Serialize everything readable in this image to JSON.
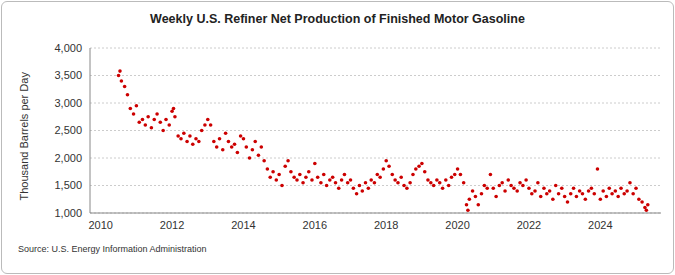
{
  "chart_data": {
    "type": "scatter",
    "title": "Weekly U.S. Refiner Net Production of Finished Motor Gasoline",
    "y_label": "Thousand Barrels per Day",
    "source": "Source: U.S. Energy Information Administration",
    "color": "#cc0000",
    "marker": "circle",
    "grid": true,
    "xlim": [
      2009.7,
      2025.7
    ],
    "xticks": [
      2010,
      2012,
      2014,
      2016,
      2018,
      2020,
      2022,
      2024
    ],
    "ylim": [
      1000,
      4000
    ],
    "yticks": [
      {
        "value": 1000,
        "label": "1,000"
      },
      {
        "value": 1500,
        "label": "1,500"
      },
      {
        "value": 2000,
        "label": "2,000"
      },
      {
        "value": 2500,
        "label": "2,500"
      },
      {
        "value": 3000,
        "label": "3,000"
      },
      {
        "value": 3500,
        "label": "3,500"
      },
      {
        "value": 4000,
        "label": "4,000"
      }
    ],
    "x": [
      2010.5,
      2010.54,
      2010.58,
      2010.67,
      2010.75,
      2010.83,
      2010.92,
      2011.0,
      2011.08,
      2011.17,
      2011.25,
      2011.33,
      2011.42,
      2011.5,
      2011.58,
      2011.67,
      2011.75,
      2011.83,
      2011.92,
      2012.0,
      2012.04,
      2012.08,
      2012.17,
      2012.25,
      2012.33,
      2012.42,
      2012.5,
      2012.58,
      2012.67,
      2012.75,
      2012.83,
      2012.92,
      2013.0,
      2013.08,
      2013.17,
      2013.25,
      2013.33,
      2013.42,
      2013.5,
      2013.58,
      2013.67,
      2013.75,
      2013.83,
      2013.92,
      2014.0,
      2014.08,
      2014.17,
      2014.25,
      2014.33,
      2014.42,
      2014.5,
      2014.58,
      2014.67,
      2014.75,
      2014.83,
      2014.92,
      2015.0,
      2015.08,
      2015.17,
      2015.25,
      2015.33,
      2015.42,
      2015.5,
      2015.58,
      2015.67,
      2015.75,
      2015.83,
      2015.92,
      2016.0,
      2016.08,
      2016.17,
      2016.25,
      2016.33,
      2016.42,
      2016.5,
      2016.58,
      2016.67,
      2016.75,
      2016.83,
      2016.92,
      2017.0,
      2017.08,
      2017.17,
      2017.25,
      2017.33,
      2017.42,
      2017.5,
      2017.58,
      2017.67,
      2017.75,
      2017.83,
      2017.92,
      2018.0,
      2018.08,
      2018.17,
      2018.25,
      2018.33,
      2018.42,
      2018.5,
      2018.58,
      2018.67,
      2018.75,
      2018.83,
      2018.92,
      2019.0,
      2019.08,
      2019.17,
      2019.25,
      2019.33,
      2019.42,
      2019.5,
      2019.58,
      2019.67,
      2019.75,
      2019.83,
      2019.92,
      2020.0,
      2020.08,
      2020.17,
      2020.25,
      2020.29,
      2020.33,
      2020.42,
      2020.5,
      2020.58,
      2020.67,
      2020.75,
      2020.83,
      2020.92,
      2021.0,
      2021.08,
      2021.17,
      2021.25,
      2021.33,
      2021.42,
      2021.5,
      2021.58,
      2021.67,
      2021.75,
      2021.83,
      2021.92,
      2022.0,
      2022.08,
      2022.17,
      2022.25,
      2022.33,
      2022.42,
      2022.5,
      2022.58,
      2022.67,
      2022.75,
      2022.83,
      2022.92,
      2023.0,
      2023.08,
      2023.17,
      2023.25,
      2023.33,
      2023.42,
      2023.5,
      2023.58,
      2023.67,
      2023.75,
      2023.83,
      2023.92,
      2024.0,
      2024.08,
      2024.17,
      2024.25,
      2024.33,
      2024.42,
      2024.5,
      2024.58,
      2024.67,
      2024.75,
      2024.83,
      2024.92,
      2025.0,
      2025.08,
      2025.17,
      2025.25,
      2025.29,
      2025.33
    ],
    "values": [
      3500,
      3580,
      3400,
      3300,
      3150,
      2900,
      2800,
      2950,
      2650,
      2700,
      2600,
      2750,
      2550,
      2700,
      2800,
      2650,
      2500,
      2700,
      2600,
      2850,
      2900,
      2750,
      2400,
      2350,
      2450,
      2300,
      2400,
      2250,
      2350,
      2300,
      2500,
      2600,
      2700,
      2600,
      2300,
      2200,
      2350,
      2150,
      2450,
      2300,
      2200,
      2250,
      2100,
      2400,
      2350,
      2200,
      2000,
      2150,
      2300,
      2050,
      2200,
      1950,
      1800,
      1650,
      1750,
      1600,
      1700,
      1500,
      1850,
      1950,
      1750,
      1650,
      1600,
      1700,
      1550,
      1650,
      1750,
      1600,
      1900,
      1650,
      1550,
      1700,
      1500,
      1600,
      1650,
      1550,
      1450,
      1600,
      1700,
      1550,
      1600,
      1450,
      1350,
      1500,
      1400,
      1550,
      1450,
      1600,
      1550,
      1700,
      1650,
      1800,
      1950,
      1850,
      1700,
      1600,
      1550,
      1650,
      1500,
      1450,
      1550,
      1700,
      1800,
      1850,
      1900,
      1750,
      1600,
      1550,
      1500,
      1600,
      1550,
      1450,
      1600,
      1500,
      1650,
      1700,
      1800,
      1700,
      1550,
      1150,
      1050,
      1250,
      1400,
      1300,
      1150,
      1350,
      1500,
      1450,
      1700,
      1450,
      1300,
      1500,
      1550,
      1400,
      1600,
      1500,
      1450,
      1400,
      1550,
      1500,
      1600,
      1450,
      1350,
      1400,
      1550,
      1300,
      1450,
      1350,
      1400,
      1250,
      1500,
      1350,
      1450,
      1300,
      1200,
      1350,
      1450,
      1300,
      1400,
      1350,
      1250,
      1400,
      1450,
      1350,
      1800,
      1250,
      1400,
      1300,
      1450,
      1350,
      1400,
      1300,
      1450,
      1350,
      1400,
      1550,
      1350,
      1450,
      1250,
      1200,
      1100,
      1050,
      1150
    ]
  }
}
